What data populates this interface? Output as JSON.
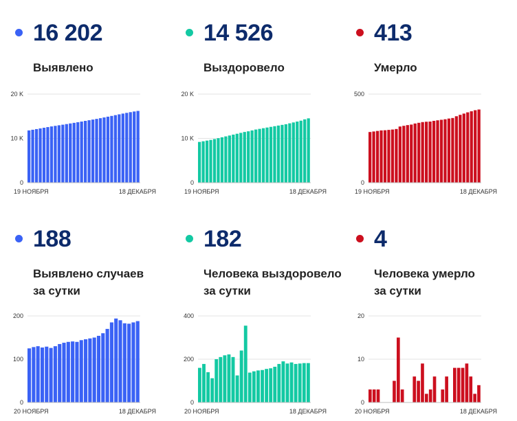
{
  "panels": [
    {
      "id": "total-cases",
      "color": "#3a62f5",
      "value": "16 202",
      "label_lines": [
        "Выявлено"
      ],
      "x_start": "19 НОЯБРЯ",
      "x_end": "18 ДЕКАБРЯ"
    },
    {
      "id": "total-recovered",
      "color": "#13c9a3",
      "value": "14 526",
      "label_lines": [
        "Выздоровело"
      ],
      "x_start": "19 НОЯБРЯ",
      "x_end": "18 ДЕКАБРЯ"
    },
    {
      "id": "total-deaths",
      "color": "#cc0f1e",
      "value": "413",
      "label_lines": [
        "Умерло"
      ],
      "x_start": "19 НОЯБРЯ",
      "x_end": "18 ДЕКАБРЯ"
    },
    {
      "id": "daily-cases",
      "color": "#3a62f5",
      "value": "188",
      "label_lines": [
        "Выявлено случаев",
        "за сутки"
      ],
      "x_start": "20 НОЯБРЯ",
      "x_end": "18 ДЕКАБРЯ"
    },
    {
      "id": "daily-recovered",
      "color": "#13c9a3",
      "value": "182",
      "label_lines": [
        "Человека выздоровело",
        "за сутки"
      ],
      "x_start": "20 НОЯБРЯ",
      "x_end": "18 ДЕКАБРЯ"
    },
    {
      "id": "daily-deaths",
      "color": "#cc0f1e",
      "value": "4",
      "label_lines": [
        "Человека умерло",
        "за сутки"
      ],
      "x_start": "20 НОЯБРЯ",
      "x_end": "18 ДЕКАБРЯ"
    }
  ],
  "chart_data": [
    {
      "type": "bar",
      "ylim": [
        0,
        20000
      ],
      "y_ticks": [
        {
          "value": 0,
          "label": "0"
        },
        {
          "value": 10000,
          "label": "10 K"
        },
        {
          "value": 20000,
          "label": "20 K"
        }
      ],
      "values": [
        11800,
        11950,
        12100,
        12250,
        12400,
        12550,
        12700,
        12830,
        12960,
        13090,
        13230,
        13370,
        13510,
        13650,
        13800,
        13950,
        14100,
        14250,
        14400,
        14560,
        14730,
        14900,
        15070,
        15250,
        15430,
        15600,
        15760,
        15920,
        16070,
        16202
      ]
    },
    {
      "type": "bar",
      "ylim": [
        0,
        20000
      ],
      "y_ticks": [
        {
          "value": 0,
          "label": "0"
        },
        {
          "value": 10000,
          "label": "10 K"
        },
        {
          "value": 20000,
          "label": "20 K"
        }
      ],
      "values": [
        9200,
        9350,
        9500,
        9650,
        9850,
        10050,
        10250,
        10450,
        10650,
        10850,
        11050,
        11250,
        11450,
        11600,
        11800,
        12000,
        12150,
        12300,
        12450,
        12600,
        12750,
        12900,
        13050,
        13200,
        13400,
        13600,
        13800,
        14000,
        14300,
        14526
      ]
    },
    {
      "type": "bar",
      "ylim": [
        0,
        500
      ],
      "y_ticks": [
        {
          "value": 0,
          "label": "0"
        },
        {
          "value": 500,
          "label": "500"
        }
      ],
      "values": [
        286,
        289,
        292,
        295,
        296,
        298,
        300,
        303,
        317,
        321,
        325,
        328,
        334,
        338,
        342,
        344,
        345,
        349,
        352,
        355,
        358,
        362,
        365,
        375,
        383,
        390,
        397,
        403,
        409,
        413
      ]
    },
    {
      "type": "bar",
      "ylim": [
        0,
        200
      ],
      "y_ticks": [
        {
          "value": 0,
          "label": "0"
        },
        {
          "value": 100,
          "label": "100"
        },
        {
          "value": 200,
          "label": "200"
        }
      ],
      "values": [
        125,
        128,
        130,
        127,
        129,
        126,
        130,
        135,
        138,
        140,
        141,
        140,
        144,
        146,
        148,
        150,
        154,
        160,
        170,
        185,
        194,
        190,
        183,
        182,
        185,
        188
      ]
    },
    {
      "type": "bar",
      "ylim": [
        0,
        400
      ],
      "y_ticks": [
        {
          "value": 0,
          "label": "0"
        },
        {
          "value": 200,
          "label": "200"
        },
        {
          "value": 400,
          "label": "400"
        }
      ],
      "values": [
        160,
        178,
        140,
        112,
        200,
        210,
        218,
        222,
        210,
        125,
        240,
        355,
        138,
        144,
        148,
        150,
        155,
        158,
        165,
        178,
        190,
        180,
        185,
        178,
        180,
        182,
        182
      ]
    },
    {
      "type": "bar",
      "ylim": [
        0,
        20
      ],
      "y_ticks": [
        {
          "value": 0,
          "label": "0"
        },
        {
          "value": 10,
          "label": "10"
        },
        {
          "value": 20,
          "label": "20"
        }
      ],
      "values": [
        3,
        3,
        3,
        0,
        0,
        0,
        5,
        15,
        3,
        0,
        0,
        6,
        5,
        9,
        2,
        3,
        6,
        0,
        3,
        6,
        0,
        8,
        8,
        8,
        9,
        6,
        2,
        4
      ]
    }
  ]
}
